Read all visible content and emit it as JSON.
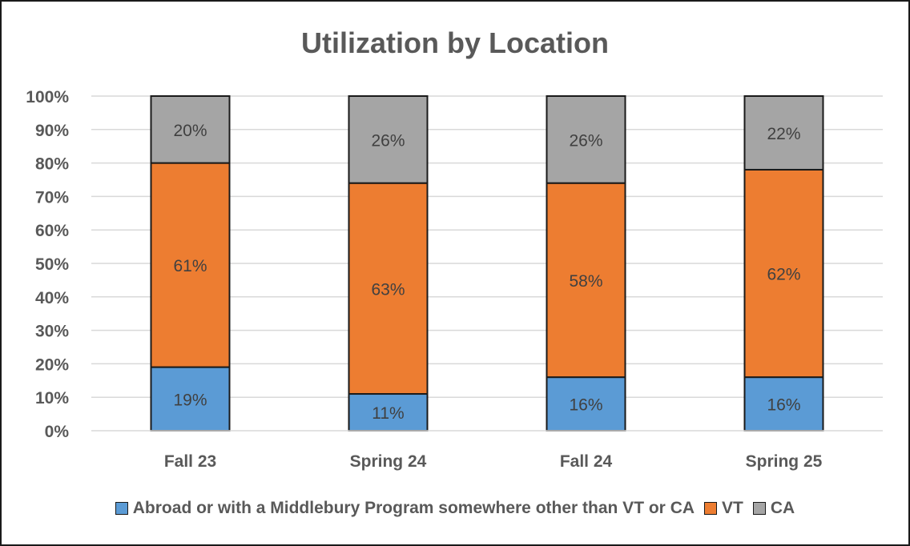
{
  "chart_data": {
    "type": "bar",
    "stacked": true,
    "title": "Utilization by Location",
    "categories": [
      "Fall 23",
      "Spring 24",
      "Fall 24",
      "Spring 25"
    ],
    "ylim": [
      0,
      100
    ],
    "yticks": [
      0,
      10,
      20,
      30,
      40,
      50,
      60,
      70,
      80,
      90,
      100
    ],
    "ytick_labels": [
      "0%",
      "10%",
      "20%",
      "30%",
      "40%",
      "50%",
      "60%",
      "70%",
      "80%",
      "90%",
      "100%"
    ],
    "grid": true,
    "legend_position": "bottom",
    "series": [
      {
        "name": "Abroad or with a Middlebury Program somewhere other than VT or CA",
        "color": "#5b9bd5",
        "values": [
          19,
          11,
          16,
          16
        ],
        "labels": [
          "19%",
          "11%",
          "16%",
          "16%"
        ]
      },
      {
        "name": "VT",
        "color": "#ed7d31",
        "values": [
          61,
          63,
          58,
          62
        ],
        "labels": [
          "61%",
          "63%",
          "58%",
          "62%"
        ]
      },
      {
        "name": "CA",
        "color": "#a5a5a5",
        "values": [
          20,
          26,
          26,
          22
        ],
        "labels": [
          "20%",
          "26%",
          "26%",
          "22%"
        ]
      }
    ]
  }
}
